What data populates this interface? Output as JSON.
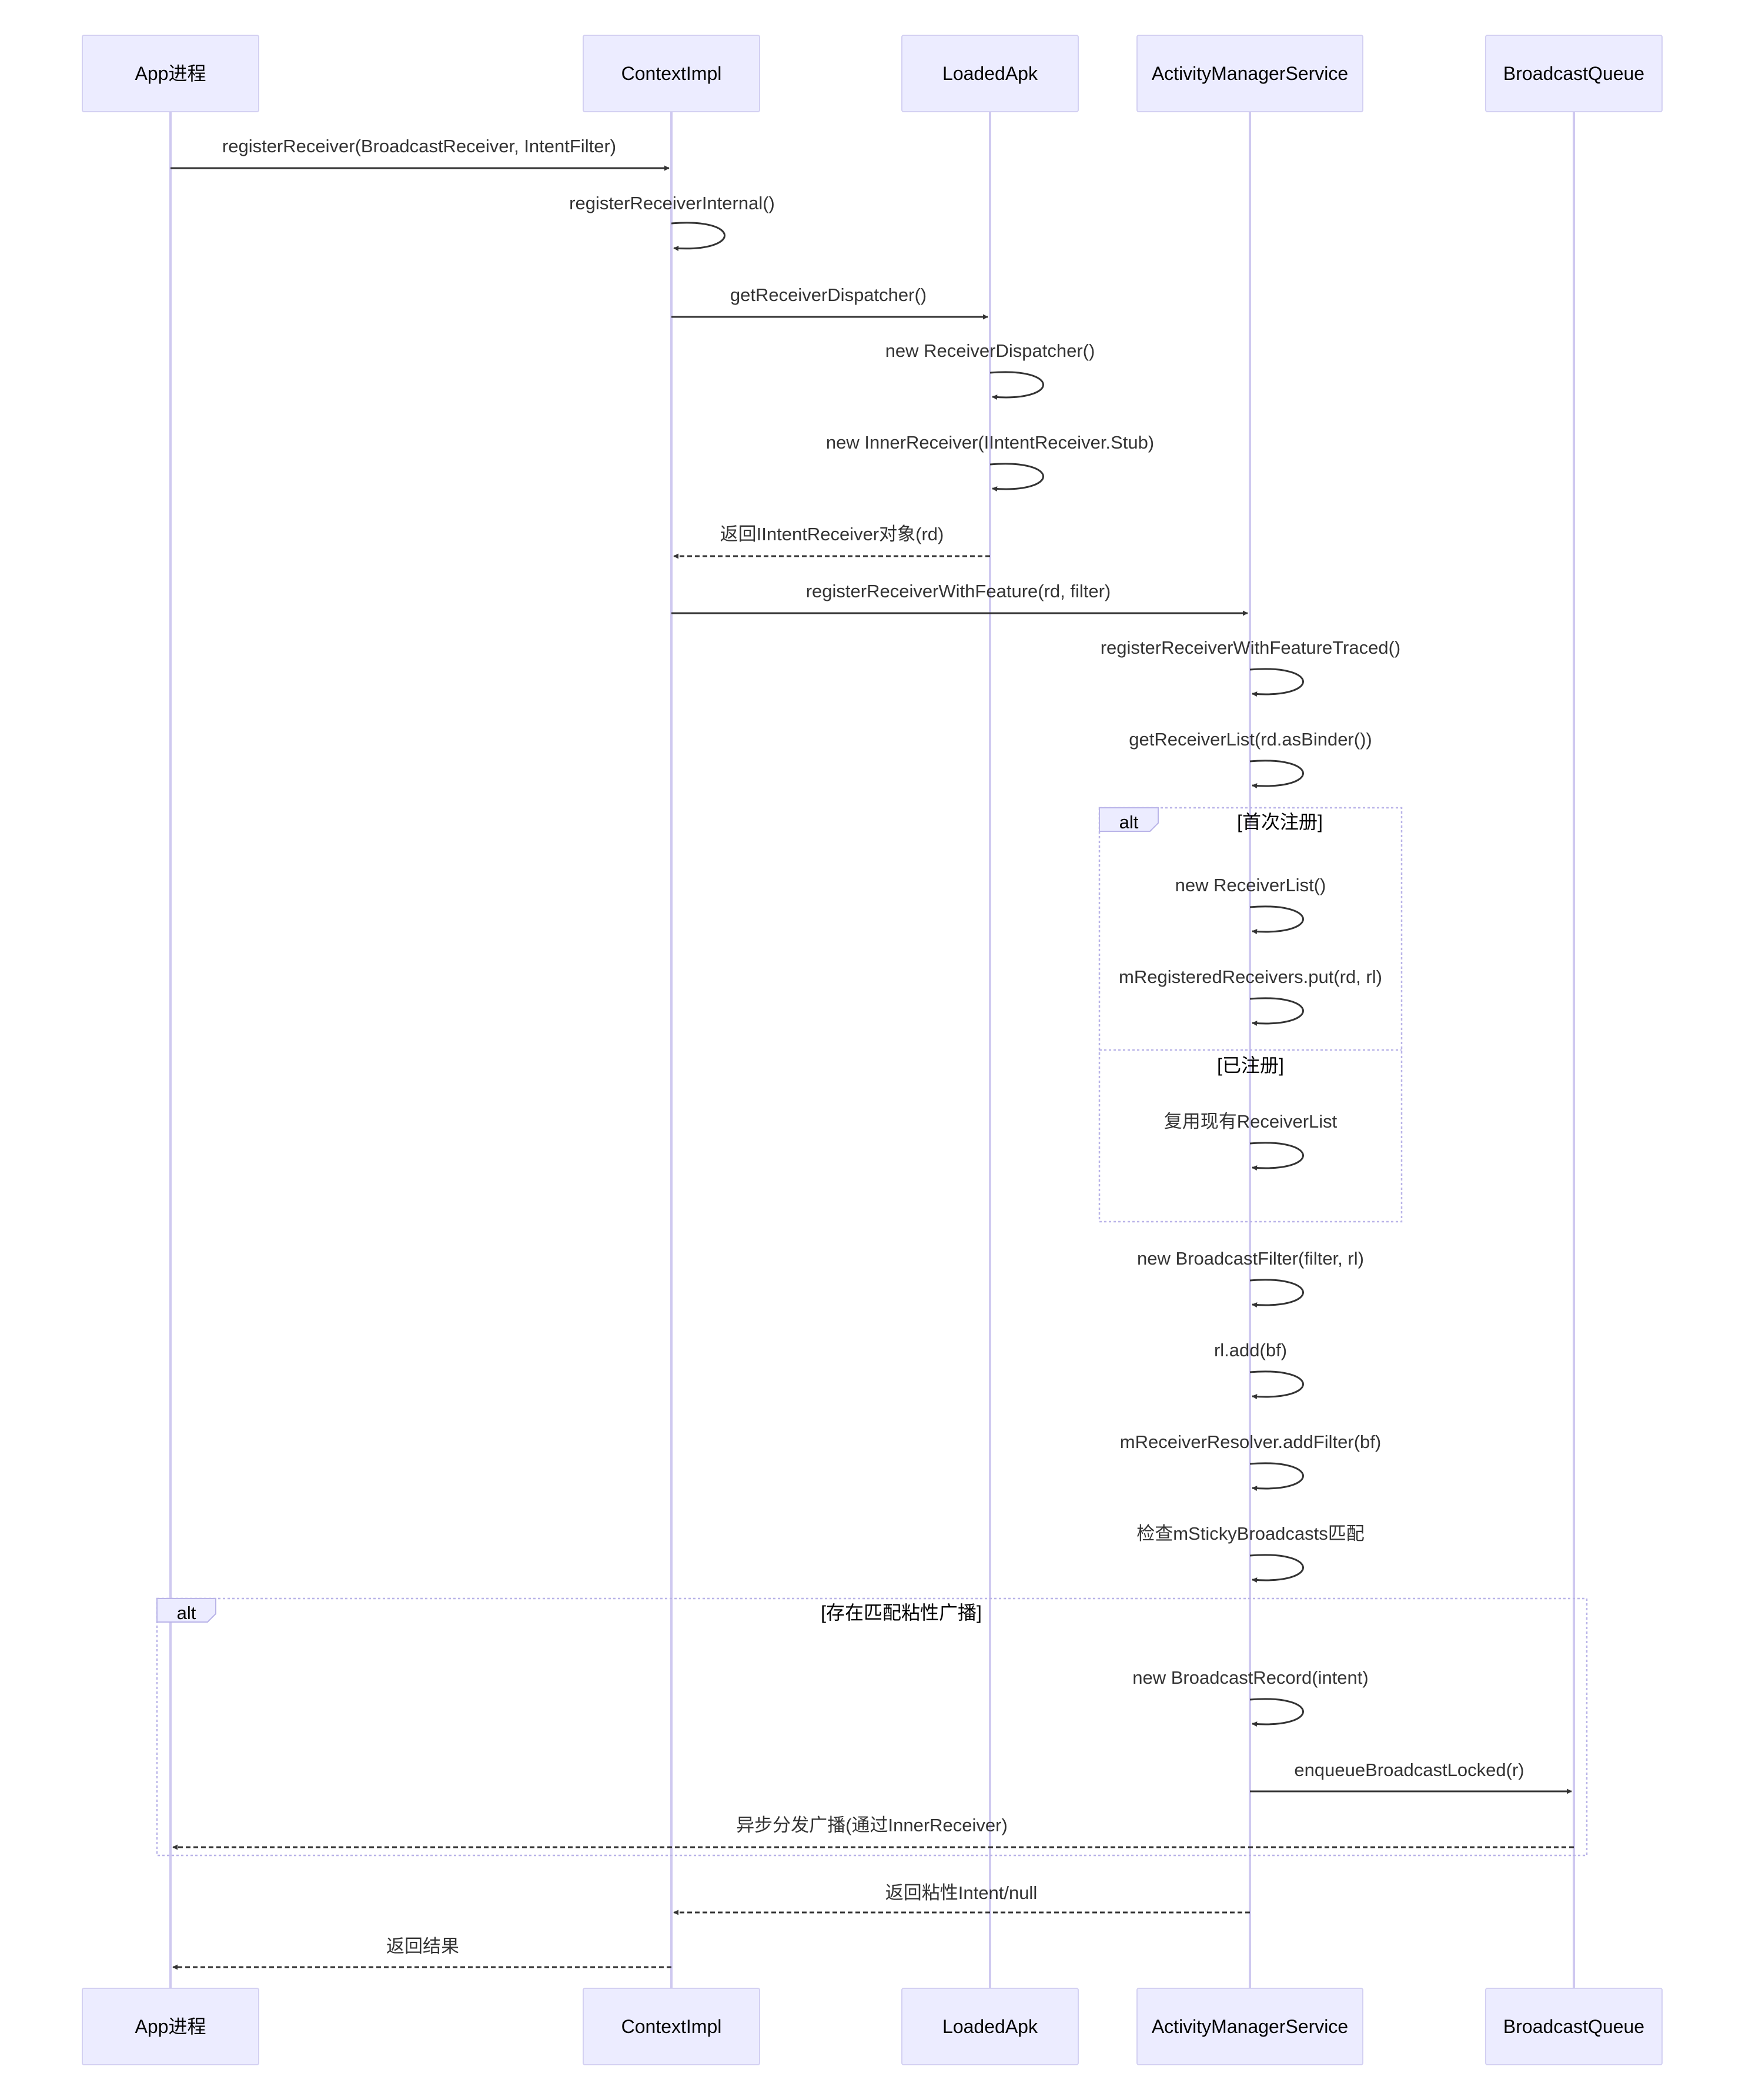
{
  "participants": [
    {
      "id": "app",
      "label": "App进程"
    },
    {
      "id": "ctx",
      "label": "ContextImpl"
    },
    {
      "id": "apk",
      "label": "LoadedApk"
    },
    {
      "id": "ams",
      "label": "ActivityManagerService"
    },
    {
      "id": "bq",
      "label": "BroadcastQueue"
    }
  ],
  "messages": [
    {
      "from": "app",
      "to": "ctx",
      "label": "registerReceiver(BroadcastReceiver, IntentFilter)",
      "style": "solid"
    },
    {
      "from": "ctx",
      "to": "ctx",
      "label": "registerReceiverInternal()",
      "style": "solid"
    },
    {
      "from": "ctx",
      "to": "apk",
      "label": "getReceiverDispatcher()",
      "style": "solid"
    },
    {
      "from": "apk",
      "to": "apk",
      "label": "new ReceiverDispatcher()",
      "style": "solid"
    },
    {
      "from": "apk",
      "to": "apk",
      "label": "new InnerReceiver(IIntentReceiver.Stub)",
      "style": "solid"
    },
    {
      "from": "apk",
      "to": "ctx",
      "label": "返回IIntentReceiver对象(rd)",
      "style": "dashed"
    },
    {
      "from": "ctx",
      "to": "ams",
      "label": "registerReceiverWithFeature(rd, filter)",
      "style": "solid"
    },
    {
      "from": "ams",
      "to": "ams",
      "label": "registerReceiverWithFeatureTraced()",
      "style": "solid"
    },
    {
      "from": "ams",
      "to": "ams",
      "label": "getReceiverList(rd.asBinder())",
      "style": "solid"
    },
    {
      "from": "ams",
      "to": "ams",
      "label": "new ReceiverList()",
      "style": "solid"
    },
    {
      "from": "ams",
      "to": "ams",
      "label": "mRegisteredReceivers.put(rd, rl)",
      "style": "solid"
    },
    {
      "from": "ams",
      "to": "ams",
      "label": "复用现有ReceiverList",
      "style": "solid"
    },
    {
      "from": "ams",
      "to": "ams",
      "label": "new BroadcastFilter(filter, rl)",
      "style": "solid"
    },
    {
      "from": "ams",
      "to": "ams",
      "label": "rl.add(bf)",
      "style": "solid"
    },
    {
      "from": "ams",
      "to": "ams",
      "label": "mReceiverResolver.addFilter(bf)",
      "style": "solid"
    },
    {
      "from": "ams",
      "to": "ams",
      "label": "检查mStickyBroadcasts匹配",
      "style": "solid"
    },
    {
      "from": "ams",
      "to": "ams",
      "label": "new BroadcastRecord(intent)",
      "style": "solid"
    },
    {
      "from": "ams",
      "to": "bq",
      "label": "enqueueBroadcastLocked(r)",
      "style": "solid"
    },
    {
      "from": "bq",
      "to": "app",
      "label": "异步分发广播(通过InnerReceiver)",
      "style": "dashed"
    },
    {
      "from": "ams",
      "to": "ctx",
      "label": "返回粘性Intent/null",
      "style": "dashed"
    },
    {
      "from": "ctx",
      "to": "app",
      "label": "返回结果",
      "style": "dashed"
    }
  ],
  "frames": [
    {
      "keyword": "alt",
      "sections": [
        "[首次注册]",
        "[已注册]"
      ]
    },
    {
      "keyword": "alt",
      "sections": [
        "[存在匹配粘性广播]"
      ]
    }
  ]
}
